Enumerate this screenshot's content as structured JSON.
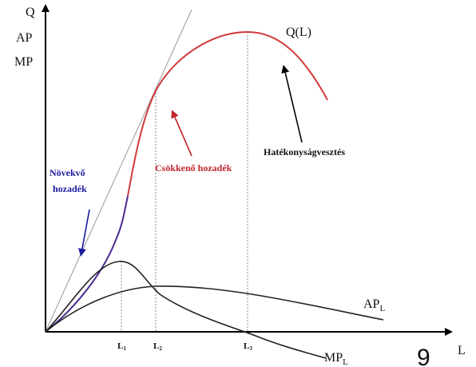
{
  "axes": {
    "y_labels": [
      "Q",
      "AP",
      "MP"
    ],
    "x_label": "L"
  },
  "curves": [
    {
      "label": "Q(L)"
    },
    {
      "label": "AP",
      "subscript": "L"
    },
    {
      "label": "MP",
      "subscript": "L"
    }
  ],
  "x_marks": [
    {
      "label": "L",
      "subscript": "1"
    },
    {
      "label": "L",
      "subscript": "2"
    },
    {
      "label": "L",
      "subscript": "3"
    }
  ],
  "annotations": {
    "increasing": [
      "Növekvő",
      "hozadék"
    ],
    "diminishing": "Csökkenő hozadék",
    "inefficiency": "Hatékonyságvesztés"
  },
  "page_number": "9"
}
